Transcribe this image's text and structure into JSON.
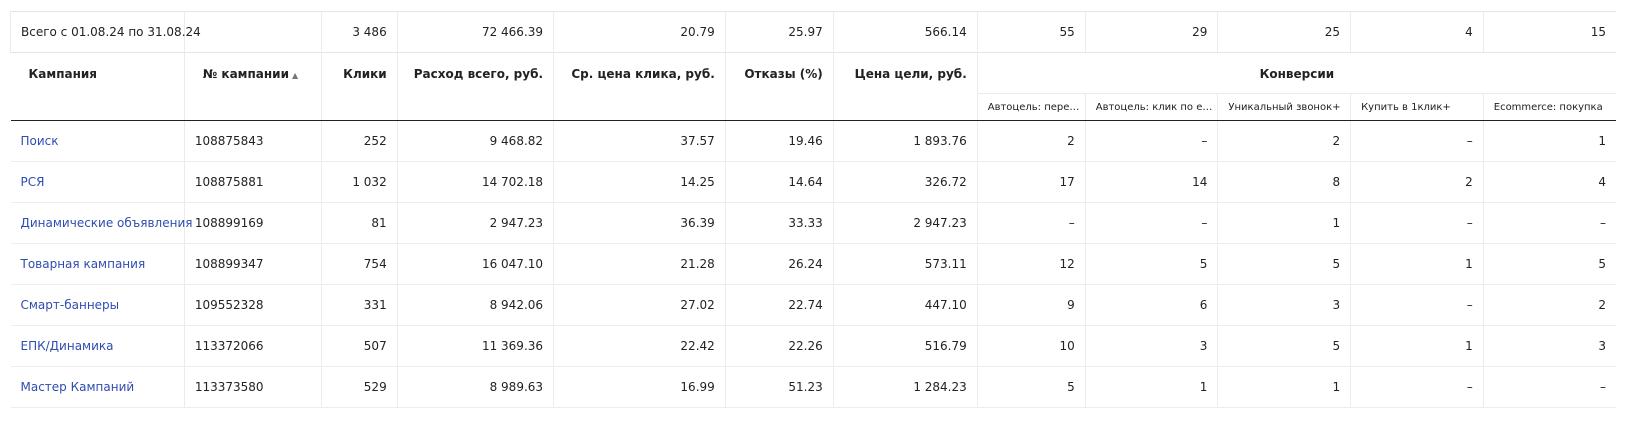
{
  "colors": {
    "link": "#2f4db0",
    "border": "#ebebeb",
    "header_rule": "#222222"
  },
  "totals": {
    "label": "Всего с 01.08.24 по 31.08.24",
    "clicks": "3 486",
    "cost": "72 466.39",
    "avg_cpc": "20.79",
    "bounce": "25.97",
    "goal_cost": "566.14",
    "conv": [
      "55",
      "29",
      "25",
      "4",
      "15"
    ]
  },
  "headers": {
    "campaign": "Кампания",
    "campaign_id": "№ кампании",
    "sort_icon": "▲",
    "clicks": "Клики",
    "cost": "Расход всего, руб.",
    "avg_cpc": "Ср. цена клика, руб.",
    "bounce": "Отказы (%)",
    "goal_cost": "Цена цели, руб.",
    "conversions": "Конверсии",
    "conv_goals": [
      "Автоцель: пере…",
      "Автоцель: клик по е…",
      "Уникальный звонок+",
      "Купить в 1клик+",
      "Ecommerce: покупка"
    ]
  },
  "rows": [
    {
      "name": "Поиск",
      "id": "108875843",
      "clicks": "252",
      "cost": "9 468.82",
      "avg_cpc": "37.57",
      "bounce": "19.46",
      "goal_cost": "1 893.76",
      "conv": [
        "2",
        "–",
        "2",
        "–",
        "1"
      ]
    },
    {
      "name": "РСЯ",
      "id": "108875881",
      "clicks": "1 032",
      "cost": "14 702.18",
      "avg_cpc": "14.25",
      "bounce": "14.64",
      "goal_cost": "326.72",
      "conv": [
        "17",
        "14",
        "8",
        "2",
        "4"
      ]
    },
    {
      "name": "Динамические объявления",
      "id": "108899169",
      "clicks": "81",
      "cost": "2 947.23",
      "avg_cpc": "36.39",
      "bounce": "33.33",
      "goal_cost": "2 947.23",
      "conv": [
        "–",
        "–",
        "1",
        "–",
        "–"
      ]
    },
    {
      "name": "Товарная кампания",
      "id": "108899347",
      "clicks": "754",
      "cost": "16 047.10",
      "avg_cpc": "21.28",
      "bounce": "26.24",
      "goal_cost": "573.11",
      "conv": [
        "12",
        "5",
        "5",
        "1",
        "5"
      ]
    },
    {
      "name": "Смарт-баннеры",
      "id": "109552328",
      "clicks": "331",
      "cost": "8 942.06",
      "avg_cpc": "27.02",
      "bounce": "22.74",
      "goal_cost": "447.10",
      "conv": [
        "9",
        "6",
        "3",
        "–",
        "2"
      ]
    },
    {
      "name": "ЕПК/Динамика",
      "id": "113372066",
      "clicks": "507",
      "cost": "11 369.36",
      "avg_cpc": "22.42",
      "bounce": "22.26",
      "goal_cost": "516.79",
      "conv": [
        "10",
        "3",
        "5",
        "1",
        "3"
      ]
    },
    {
      "name": "Мастер Кампаний",
      "id": "113373580",
      "clicks": "529",
      "cost": "8 989.63",
      "avg_cpc": "16.99",
      "bounce": "51.23",
      "goal_cost": "1 284.23",
      "conv": [
        "5",
        "1",
        "1",
        "–",
        "–"
      ]
    }
  ]
}
